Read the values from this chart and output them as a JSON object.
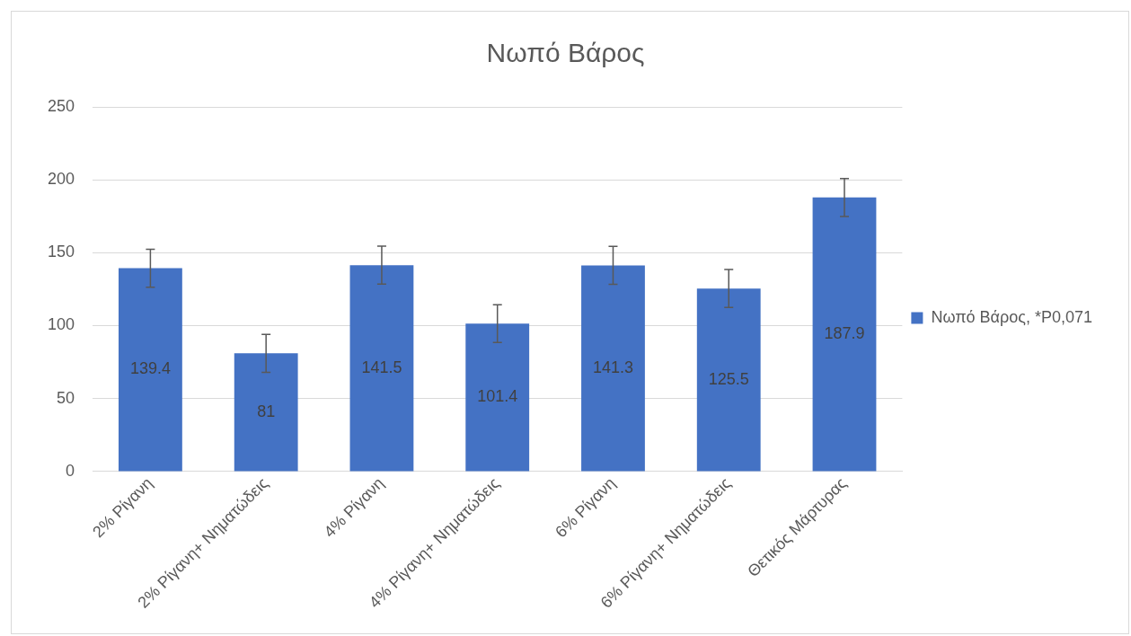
{
  "chart_data": {
    "type": "bar",
    "title": "Νωπό Βάρος",
    "categories": [
      "2% Ρίγανη",
      "2% Ρίγανη+ Νηματώδεις",
      "4% Ρίγανη",
      "4% Ρίγανη+ Νηματώδεις",
      "6% Ρίγανη",
      "6% Ρίγανη+ Νηματώδεις",
      "Θετικός Μάρτυρας"
    ],
    "series": [
      {
        "name": "Νωπό Βάρος, *P0,071",
        "color": "#4472c4",
        "values": [
          139.4,
          81,
          141.5,
          101.4,
          141.3,
          125.5,
          187.9
        ],
        "errors": [
          13,
          13,
          13,
          13,
          13,
          13,
          13
        ]
      }
    ],
    "ylim": [
      0,
      250
    ],
    "yticks": [
      0,
      50,
      100,
      150,
      200,
      250
    ],
    "grid": "y",
    "legend": "right",
    "data_labels": true
  }
}
